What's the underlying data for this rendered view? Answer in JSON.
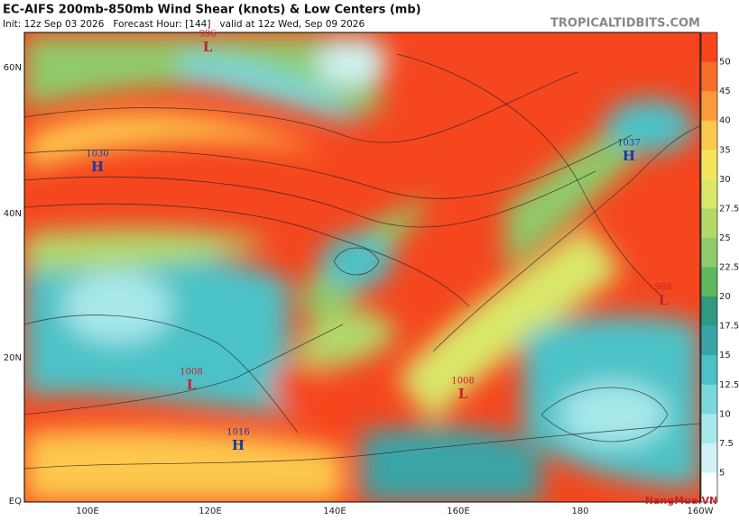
{
  "header": {
    "title": "EC-AIFS 200mb-850mb Wind Shear (knots) & Low Centers (mb)",
    "init": "Init: 12z Sep 03 2026   Forecast Hour: [144]   valid at 12z Wed, Sep 09 2026"
  },
  "site": "TROPICALTIDBITS.COM",
  "map": {
    "lat_labels": [
      "60N",
      "40N",
      "20N",
      "EQ"
    ],
    "lon_labels": [
      "100E",
      "120E",
      "140E",
      "160E",
      "180",
      "160W"
    ],
    "centers": [
      {
        "value": "996",
        "letter": "L"
      },
      {
        "value": "1030",
        "letter": "H"
      },
      {
        "value": "1037",
        "letter": "H"
      },
      {
        "value": "988",
        "letter": "L"
      },
      {
        "value": "1008",
        "letter": "L"
      },
      {
        "value": "1008",
        "letter": "L"
      },
      {
        "value": "1016",
        "letter": "H"
      }
    ]
  },
  "colorbar": {
    "ticks": [
      50,
      45,
      40,
      35,
      30,
      27.5,
      25,
      22.5,
      20,
      17.5,
      15,
      12.5,
      10,
      7.5,
      5
    ]
  },
  "watermark": "NangMua.VN"
}
